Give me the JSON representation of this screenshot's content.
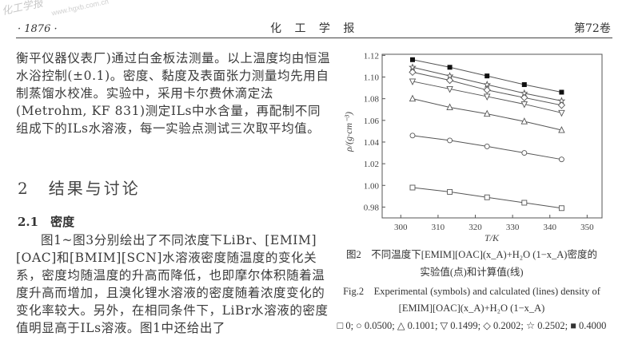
{
  "watermark": {
    "journal": "化工学报",
    "site": "www.hgxb.com.cn"
  },
  "header": {
    "page_number": "· 1876 ·",
    "journal_title": "化 工 学 报",
    "volume": "第72卷"
  },
  "body": {
    "paragraph1": "衡平仪器仪表厂)通过白金板法测量。以上温度均由恒温水浴控制(±0.1)。密度、黏度及表面张力测量均先用自制蒸馏水校准。实验中，采用卡尔费休滴定法(Metrohm, KF 831)测定ILs中水含量，再配制不同组成下的ILs水溶液，每一实验点测试三次取平均值。",
    "section_title": "2　结果与讨论",
    "subsection_title": "2.1　密度",
    "paragraph2": "图1~图3分别绘出了不同浓度下LiBr、[EMIM][OAC]和[BMIM][SCN]水溶液密度随温度的变化关系，密度均随温度的升高而降低，也即摩尔体积随着温度升高而增加，且溴化锂水溶液的密度随着浓度变化的变化率较大。另外，在相同条件下，LiBr水溶液的密度值明显高于ILs溶液。图1中还给出了"
  },
  "figure": {
    "caption_cn_line1": "图2　不同温度下[EMIM][OAC](x_A)+H₂O (1−x_A)密度的",
    "caption_cn_line2": "实验值(点)和计算值(线)",
    "caption_en_line1": "Fig.2　Experimental (symbols) and calculated (lines) density of",
    "caption_en_line2": "[EMIM][OAC](x_A)+H₂O (1−x_A)",
    "legend_line": "□ 0; ○ 0.0500; △ 0.1001; ▽ 0.1499; ◇ 0.2002; ☆ 0.2502; ■ 0.4000"
  },
  "chart_data": {
    "type": "scatter",
    "xlabel": "T/K",
    "ylabel": "ρ/(g·cm⁻³)",
    "xlim": [
      295,
      354
    ],
    "ylim": [
      0.97,
      1.121
    ],
    "xticks": [
      300,
      310,
      320,
      330,
      340,
      350
    ],
    "yticks": [
      0.98,
      1.0,
      1.02,
      1.04,
      1.06,
      1.08,
      1.1,
      1.12
    ],
    "grid": false,
    "x": [
      303.15,
      313.15,
      323.15,
      333.15,
      343.15
    ],
    "series": [
      {
        "name": "0",
        "marker": "square-open",
        "values": [
          0.998,
          0.994,
          0.989,
          0.984,
          0.979
        ]
      },
      {
        "name": "0.0500",
        "marker": "circle-open",
        "values": [
          1.046,
          1.0415,
          1.036,
          1.03,
          1.024
        ]
      },
      {
        "name": "0.1001",
        "marker": "triangle-up-open",
        "values": [
          1.08,
          1.072,
          1.066,
          1.059,
          1.051
        ]
      },
      {
        "name": "0.1499",
        "marker": "triangle-down-open",
        "values": [
          1.096,
          1.089,
          1.082,
          1.075,
          1.067
        ]
      },
      {
        "name": "0.2002",
        "marker": "diamond-open",
        "values": [
          1.1045,
          1.097,
          1.088,
          1.081,
          1.074
        ]
      },
      {
        "name": "0.2502",
        "marker": "star-open",
        "values": [
          1.109,
          1.101,
          1.093,
          1.085,
          1.078
        ]
      },
      {
        "name": "0.4000",
        "marker": "square-filled",
        "values": [
          1.116,
          1.109,
          1.101,
          1.093,
          1.086
        ]
      }
    ]
  }
}
